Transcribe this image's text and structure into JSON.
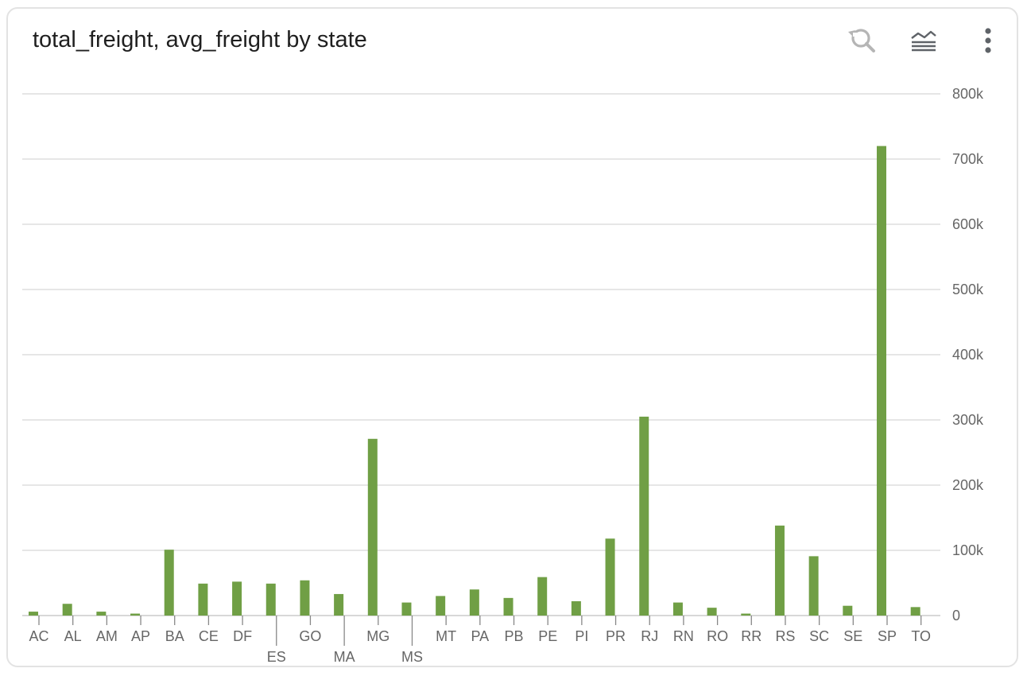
{
  "header": {
    "title": "total_freight, avg_freight by state"
  },
  "toolbar": {
    "icons": [
      "zoom-reset-icon",
      "chart-type-icon",
      "more-vertical-icon"
    ]
  },
  "colors": {
    "bar": "#709f45",
    "grid": "#dddddd",
    "axis_text": "#666666",
    "title": "#1f1f1f",
    "icon": "#5f6368",
    "icon_disabled": "#b5b5b5"
  },
  "chart_data": {
    "type": "bar",
    "title": "total_freight, avg_freight by state",
    "categories": [
      "AC",
      "AL",
      "AM",
      "AP",
      "BA",
      "CE",
      "DF",
      "ES",
      "GO",
      "MA",
      "MG",
      "MS",
      "MT",
      "PA",
      "PB",
      "PE",
      "PI",
      "PR",
      "RJ",
      "RN",
      "RO",
      "RR",
      "RS",
      "SC",
      "SE",
      "SP",
      "TO"
    ],
    "series": [
      {
        "values": [
          6000,
          18000,
          6000,
          3000,
          101000,
          49000,
          52000,
          49000,
          54000,
          33000,
          271000,
          20000,
          30000,
          40000,
          27000,
          59000,
          22000,
          118000,
          305000,
          20000,
          12000,
          3000,
          138000,
          91000,
          15000,
          720000,
          13000
        ]
      }
    ],
    "ylim": [
      0,
      800000
    ],
    "y_ticks": [
      "0",
      "100k",
      "200k",
      "300k",
      "400k",
      "500k",
      "600k",
      "700k",
      "800k"
    ],
    "y_axis_position": "right",
    "grid": true,
    "legend": "none"
  }
}
